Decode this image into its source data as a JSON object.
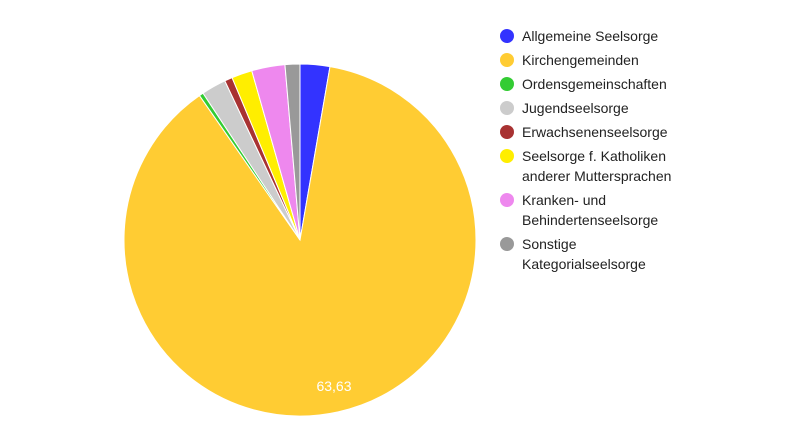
{
  "chart_data": {
    "type": "pie",
    "start_angle": "top, clockwise",
    "series": [
      {
        "name": "Allgemeine Seelsorge",
        "value": 1.98,
        "color": "#3333ff"
      },
      {
        "name": "Kirchengemeinden",
        "value": 63.63,
        "color": "#ffcc33",
        "label": "63,63"
      },
      {
        "name": "Ordensgemeinschaften",
        "value": 0.28,
        "color": "#33cc33"
      },
      {
        "name": "Jugendseelsorge",
        "value": 1.65,
        "color": "#cccccc"
      },
      {
        "name": "Erwachsenenseelsorge",
        "value": 0.52,
        "color": "#a83232"
      },
      {
        "name": "Seelsorge f. Katholiken anderer Muttersprachen",
        "value": 1.37,
        "color": "#ffee00"
      },
      {
        "name": "Kranken- und Behindertenseelsorge",
        "value": 2.22,
        "color": "#ee88ee"
      },
      {
        "name": "Sonstige Kategorialseelsorge",
        "value": 0.99,
        "color": "#999999"
      }
    ],
    "legend": "right"
  }
}
